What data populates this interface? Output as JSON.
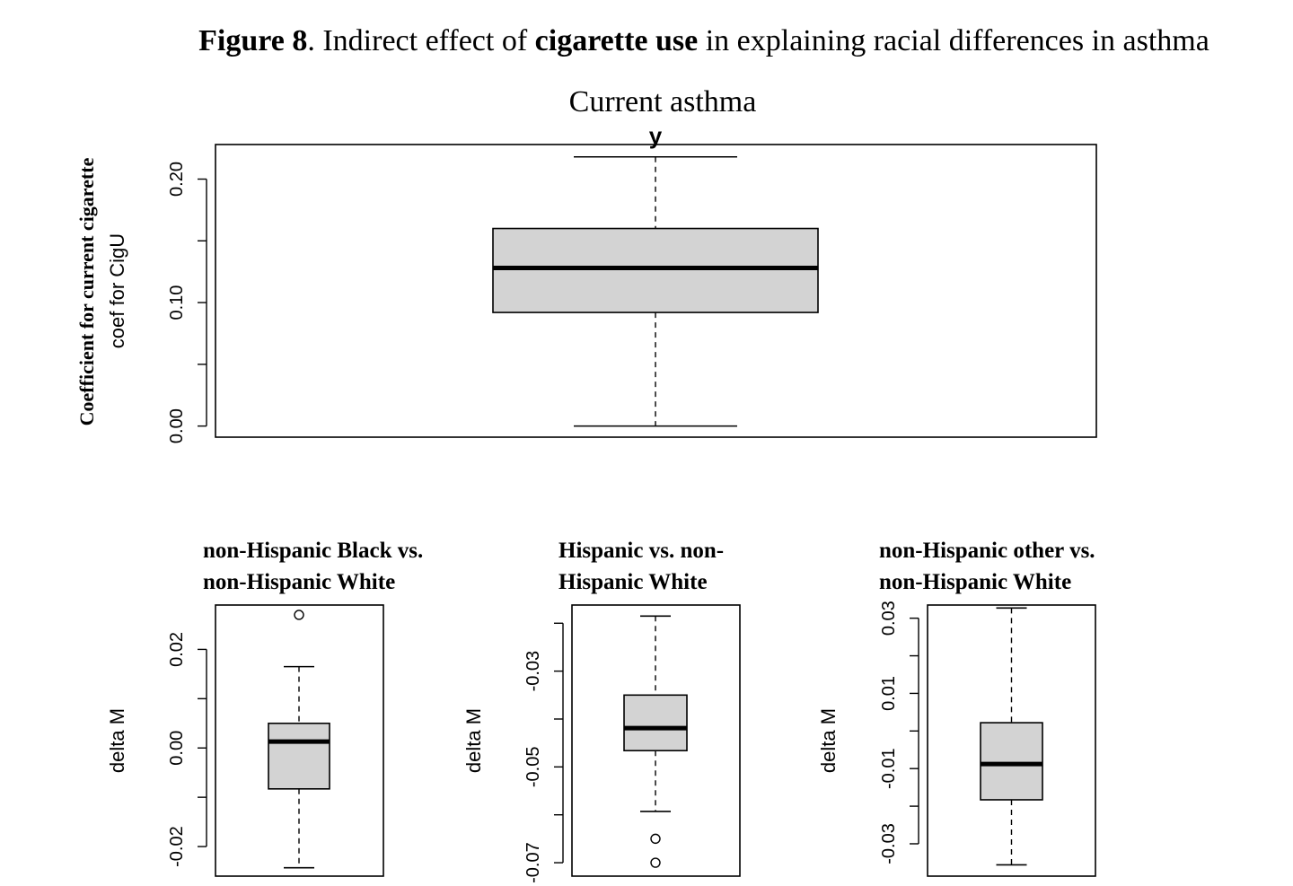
{
  "figure": {
    "label": "Figure 8",
    "caption_parts": [
      {
        "text": "Figure 8",
        "bold": true
      },
      {
        "text": ". Indirect effect of ",
        "bold": false
      },
      {
        "text": "cigarette use",
        "bold": true
      },
      {
        "text": " in explaining racial differences in asthma",
        "bold": false
      }
    ],
    "section_title": "Current asthma",
    "side_label": "Coefficient for current cigarette"
  },
  "chart_data": [
    {
      "type": "box",
      "title": "y",
      "xlabel": "",
      "ylabel": "coef for CigU",
      "ylim": [
        -0.009,
        0.228
      ],
      "yticks": [
        0.0,
        0.05,
        0.1,
        0.15,
        0.2
      ],
      "yticklabels": [
        "0.00",
        "",
        "0.10",
        "",
        "0.20"
      ],
      "box": {
        "min": 0.0,
        "q1": 0.092,
        "median": 0.128,
        "q3": 0.16,
        "max": 0.218
      },
      "outliers": []
    },
    {
      "type": "box",
      "title": "non-Hispanic Black vs. non-Hispanic White",
      "title_lines": [
        "non-Hispanic Black vs.",
        "non-Hispanic White"
      ],
      "xlabel": "",
      "ylabel": "delta M",
      "ylim": [
        -0.026,
        0.029
      ],
      "yticks": [
        -0.03,
        -0.02,
        -0.01,
        0.0,
        0.01,
        0.02
      ],
      "yticklabels": [
        "",
        "-0.02",
        "",
        "0.00",
        "",
        "0.02"
      ],
      "box": {
        "min": -0.0243,
        "q1": -0.0083,
        "median": 0.0013,
        "q3": 0.005,
        "max": 0.0165
      },
      "outliers": [
        0.027
      ]
    },
    {
      "type": "box",
      "title": "Hispanic vs. non-Hispanic White",
      "title_lines": [
        "Hispanic vs. non-",
        "Hispanic White"
      ],
      "xlabel": "",
      "ylabel": "delta M",
      "ylim": [
        -0.0728,
        -0.0162
      ],
      "yticks": [
        -0.07,
        -0.06,
        -0.05,
        -0.04,
        -0.03,
        -0.02
      ],
      "yticklabels": [
        "-0.07",
        "",
        "-0.05",
        "",
        "-0.03",
        ""
      ],
      "box": {
        "min": -0.0593,
        "q1": -0.0466,
        "median": -0.0419,
        "q3": -0.035,
        "max": -0.0185
      },
      "outliers": [
        -0.065,
        -0.07
      ]
    },
    {
      "type": "box",
      "title": "non-Hispanic other vs. non-Hispanic White",
      "title_lines": [
        "non-Hispanic other vs.",
        "non-Hispanic White"
      ],
      "xlabel": "",
      "ylabel": "delta M",
      "ylim": [
        -0.0386,
        0.0335
      ],
      "yticks": [
        -0.03,
        -0.02,
        -0.01,
        0.0,
        0.01,
        0.02,
        0.03
      ],
      "yticklabels": [
        "-0.03",
        "",
        "-0.01",
        "",
        "0.01",
        "",
        "0.03"
      ],
      "box": {
        "min": -0.0356,
        "q1": -0.0183,
        "median": -0.0088,
        "q3": 0.0022,
        "max": 0.0327
      },
      "outliers": []
    }
  ]
}
